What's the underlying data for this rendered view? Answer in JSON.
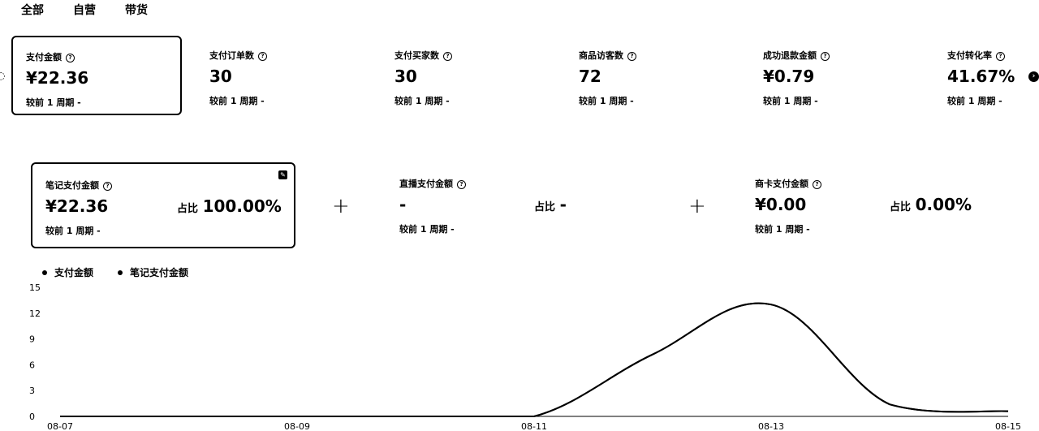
{
  "tabs": [
    {
      "label": "全部"
    },
    {
      "label": "自营"
    },
    {
      "label": "带货"
    }
  ],
  "metrics": [
    {
      "title": "支付金额",
      "value": "¥22.36",
      "compare": "较前 1 周期 -"
    },
    {
      "title": "支付订单数",
      "value": "30",
      "compare": "较前 1 周期 -"
    },
    {
      "title": "支付买家数",
      "value": "30",
      "compare": "较前 1 周期 -"
    },
    {
      "title": "商品访客数",
      "value": "72",
      "compare": "较前 1 周期 -"
    },
    {
      "title": "成功退款金额",
      "value": "¥0.79",
      "compare": "较前 1 周期 -"
    },
    {
      "title": "支付转化率",
      "value": "41.67%",
      "compare": "较前 1 周期 -"
    }
  ],
  "channels": [
    {
      "title": "笔记支付金额",
      "value": "¥22.36",
      "share_label": "占比",
      "share_value": "100.00%",
      "compare": "较前 1 周期 -"
    },
    {
      "title": "直播支付金额",
      "value": "-",
      "share_label": "占比",
      "share_value": "-",
      "compare": "较前 1 周期 -"
    },
    {
      "title": "商卡支付金额",
      "value": "¥0.00",
      "share_label": "占比",
      "share_value": "0.00%",
      "compare": "较前 1 周期 -"
    }
  ],
  "plus_symbol": "+",
  "chart_data": {
    "type": "line",
    "legend": [
      "支付金额",
      "笔记支付金额"
    ],
    "x": [
      "08-07",
      "08-08",
      "08-09",
      "08-10",
      "08-11",
      "08-12",
      "08-13",
      "08-14",
      "08-15"
    ],
    "x_tick_labels": [
      "08-07",
      "08-09",
      "08-11",
      "08-13",
      "08-15"
    ],
    "y_ticks": [
      0,
      3,
      6,
      9,
      12,
      15
    ],
    "ylim": [
      0,
      15
    ],
    "series": [
      {
        "name": "支付金额",
        "values": [
          0,
          0,
          0,
          0,
          0,
          7.2,
          13.0,
          1.4,
          0.6
        ]
      },
      {
        "name": "笔记支付金额",
        "values": [
          0,
          0,
          0,
          0,
          0,
          7.2,
          13.0,
          1.4,
          0.6
        ]
      }
    ],
    "line_color": "#000000"
  }
}
